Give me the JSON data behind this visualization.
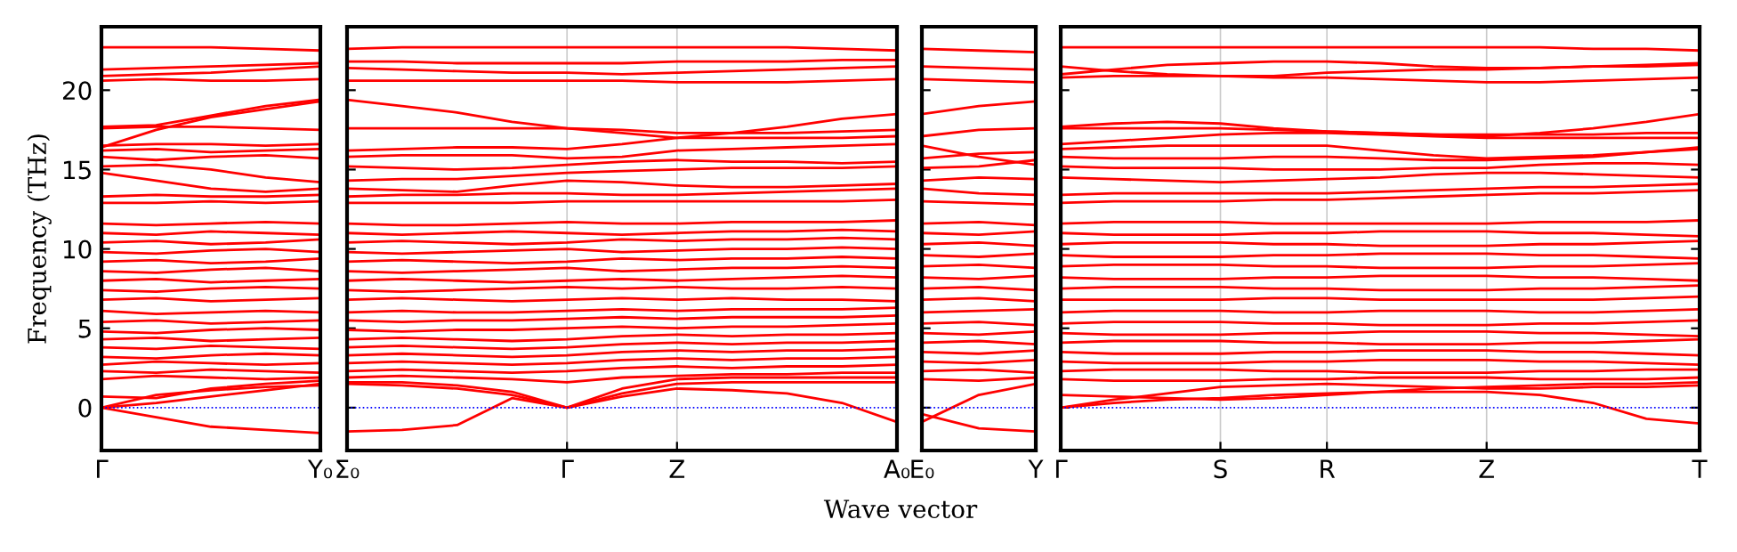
{
  "chart_data": [
    {
      "type": "line",
      "ylabel": "Frequency (THz)",
      "categories": [
        "Γ",
        null,
        null,
        null,
        "Y₀"
      ],
      "ylim": [
        -2.7,
        24
      ],
      "yticks": [
        0,
        5,
        10,
        15,
        20
      ],
      "line_style": "solid",
      "ref_lines": [
        {
          "axis": "y",
          "value": 0,
          "color": "#0000ff",
          "line_style": "dotted"
        }
      ],
      "series": [
        {
          "color": "#ff0000",
          "values": [
            0,
            -0.6,
            -1.2,
            -1.4,
            -1.6
          ]
        },
        {
          "color": "#ff0000",
          "values": [
            0,
            0.8,
            1.1,
            1.3,
            1.4
          ]
        },
        {
          "color": "#ff0000",
          "values": [
            0,
            0.3,
            0.7,
            1.1,
            1.5
          ]
        },
        {
          "color": "#ff0000",
          "values": [
            0.7,
            0.6,
            1.2,
            1.5,
            1.7
          ]
        },
        {
          "color": "#ff0000",
          "values": [
            1.8,
            2.0,
            1.9,
            1.8,
            1.9
          ]
        },
        {
          "color": "#ff0000",
          "values": [
            2.3,
            2.2,
            2.4,
            2.3,
            2.2
          ]
        },
        {
          "color": "#ff0000",
          "values": [
            2.7,
            2.9,
            2.8,
            2.7,
            2.8
          ]
        },
        {
          "color": "#ff0000",
          "values": [
            3.2,
            3.1,
            3.3,
            3.4,
            3.3
          ]
        },
        {
          "color": "#ff0000",
          "values": [
            3.8,
            3.7,
            3.9,
            3.8,
            3.7
          ]
        },
        {
          "color": "#ff0000",
          "values": [
            4.3,
            4.4,
            4.2,
            4.3,
            4.4
          ]
        },
        {
          "color": "#ff0000",
          "values": [
            4.8,
            4.7,
            4.9,
            5.0,
            4.9
          ]
        },
        {
          "color": "#ff0000",
          "values": [
            5.4,
            5.5,
            5.3,
            5.4,
            5.5
          ]
        },
        {
          "color": "#ff0000",
          "values": [
            6.1,
            5.9,
            6.0,
            6.1,
            6.0
          ]
        },
        {
          "color": "#ff0000",
          "values": [
            6.8,
            6.9,
            6.7,
            6.8,
            6.9
          ]
        },
        {
          "color": "#ff0000",
          "values": [
            7.4,
            7.3,
            7.5,
            7.6,
            7.5
          ]
        },
        {
          "color": "#ff0000",
          "values": [
            8.0,
            8.1,
            7.9,
            8.0,
            8.1
          ]
        },
        {
          "color": "#ff0000",
          "values": [
            8.6,
            8.5,
            8.7,
            8.8,
            8.6
          ]
        },
        {
          "color": "#ff0000",
          "values": [
            9.2,
            9.3,
            9.1,
            9.2,
            9.4
          ]
        },
        {
          "color": "#ff0000",
          "values": [
            9.8,
            9.7,
            9.9,
            10.0,
            9.8
          ]
        },
        {
          "color": "#ff0000",
          "values": [
            10.4,
            10.5,
            10.3,
            10.4,
            10.6
          ]
        },
        {
          "color": "#ff0000",
          "values": [
            11.0,
            10.9,
            11.1,
            11.0,
            10.9
          ]
        },
        {
          "color": "#ff0000",
          "values": [
            11.6,
            11.5,
            11.6,
            11.7,
            11.6
          ]
        },
        {
          "color": "#ff0000",
          "values": [
            12.9,
            12.9,
            13.0,
            12.9,
            13.0
          ]
        },
        {
          "color": "#ff0000",
          "values": [
            13.3,
            13.4,
            13.3,
            13.3,
            13.4
          ]
        },
        {
          "color": "#ff0000",
          "values": [
            14.8,
            14.3,
            13.8,
            13.6,
            13.8
          ]
        },
        {
          "color": "#ff0000",
          "values": [
            15.2,
            15.3,
            15.0,
            14.5,
            14.2
          ]
        },
        {
          "color": "#ff0000",
          "values": [
            15.8,
            15.6,
            15.8,
            15.9,
            15.7
          ]
        },
        {
          "color": "#ff0000",
          "values": [
            16.2,
            16.3,
            16.1,
            16.2,
            16.3
          ]
        },
        {
          "color": "#ff0000",
          "values": [
            16.5,
            16.6,
            16.6,
            16.5,
            16.6
          ]
        },
        {
          "color": "#ff0000",
          "values": [
            17.6,
            17.7,
            17.7,
            17.6,
            17.5
          ]
        },
        {
          "color": "#ff0000",
          "values": [
            16.4,
            17.5,
            18.3,
            18.8,
            19.3
          ]
        },
        {
          "color": "#ff0000",
          "values": [
            17.7,
            17.8,
            18.4,
            19.0,
            19.4
          ]
        },
        {
          "color": "#ff0000",
          "values": [
            20.6,
            20.7,
            20.6,
            20.6,
            20.7
          ]
        },
        {
          "color": "#ff0000",
          "values": [
            20.9,
            21.0,
            21.1,
            21.3,
            21.5
          ]
        },
        {
          "color": "#ff0000",
          "values": [
            21.3,
            21.4,
            21.5,
            21.6,
            21.7
          ]
        },
        {
          "color": "#ff0000",
          "values": [
            22.7,
            22.7,
            22.7,
            22.6,
            22.5
          ]
        }
      ]
    },
    {
      "type": "line",
      "xlabel": "Wave vector",
      "categories": [
        "Σ₀",
        null,
        null,
        null,
        "Γ",
        null,
        "Z",
        null,
        null,
        null,
        "A₀"
      ],
      "ylim": [
        -2.7,
        24
      ],
      "yticks": [
        0,
        5,
        10,
        15,
        20
      ],
      "tick_labels": "x",
      "grid": "x",
      "line_style": "solid",
      "ref_lines": [
        {
          "axis": "y",
          "value": 0,
          "color": "#0000ff",
          "line_style": "dotted"
        }
      ],
      "series": [
        {
          "color": "#ff0000",
          "values": [
            -1.5,
            -1.4,
            -1.1,
            0.6,
            0,
            0.7,
            1.2,
            1.1,
            0.9,
            0.3,
            -0.9
          ]
        },
        {
          "color": "#ff0000",
          "values": [
            1.5,
            1.4,
            1.2,
            0.8,
            0,
            0.9,
            1.5,
            1.6,
            1.6,
            1.6,
            1.6
          ]
        },
        {
          "color": "#ff0000",
          "values": [
            1.6,
            1.6,
            1.4,
            1.0,
            0,
            1.2,
            1.8,
            1.9,
            1.9,
            1.9,
            1.9
          ]
        },
        {
          "color": "#ff0000",
          "values": [
            1.9,
            2.0,
            1.9,
            1.8,
            1.6,
            1.9,
            2.0,
            2.1,
            2.1,
            2.2,
            2.2
          ]
        },
        {
          "color": "#ff0000",
          "values": [
            2.3,
            2.4,
            2.3,
            2.2,
            2.3,
            2.5,
            2.6,
            2.5,
            2.6,
            2.6,
            2.7
          ]
        },
        {
          "color": "#ff0000",
          "values": [
            2.8,
            2.9,
            2.8,
            2.7,
            2.8,
            3.0,
            3.1,
            3.0,
            3.1,
            3.1,
            3.2
          ]
        },
        {
          "color": "#ff0000",
          "values": [
            3.3,
            3.4,
            3.3,
            3.2,
            3.3,
            3.5,
            3.6,
            3.5,
            3.6,
            3.6,
            3.7
          ]
        },
        {
          "color": "#ff0000",
          "values": [
            3.8,
            3.9,
            3.8,
            3.7,
            3.8,
            4.0,
            4.1,
            4.0,
            4.1,
            4.1,
            4.2
          ]
        },
        {
          "color": "#ff0000",
          "values": [
            4.3,
            4.4,
            4.3,
            4.2,
            4.3,
            4.5,
            4.6,
            4.5,
            4.6,
            4.6,
            4.7
          ]
        },
        {
          "color": "#ff0000",
          "values": [
            4.9,
            4.8,
            4.9,
            4.9,
            5.0,
            5.1,
            5.0,
            5.1,
            5.1,
            5.2,
            5.3
          ]
        },
        {
          "color": "#ff0000",
          "values": [
            5.5,
            5.4,
            5.5,
            5.5,
            5.6,
            5.7,
            5.6,
            5.7,
            5.7,
            5.7,
            5.8
          ]
        },
        {
          "color": "#ff0000",
          "values": [
            6.0,
            6.1,
            6.0,
            6.0,
            6.1,
            6.2,
            6.1,
            6.2,
            6.2,
            6.2,
            6.3
          ]
        },
        {
          "color": "#ff0000",
          "values": [
            6.8,
            6.9,
            6.8,
            6.7,
            6.8,
            6.9,
            6.8,
            6.9,
            6.8,
            6.8,
            6.7
          ]
        },
        {
          "color": "#ff0000",
          "values": [
            7.4,
            7.3,
            7.4,
            7.5,
            7.6,
            7.5,
            7.6,
            7.5,
            7.5,
            7.6,
            7.5
          ]
        },
        {
          "color": "#ff0000",
          "values": [
            8.0,
            8.1,
            8.0,
            7.9,
            8.0,
            8.1,
            8.0,
            8.1,
            8.2,
            8.3,
            8.2
          ]
        },
        {
          "color": "#ff0000",
          "values": [
            8.6,
            8.5,
            8.6,
            8.7,
            8.8,
            8.6,
            8.7,
            8.8,
            8.8,
            8.9,
            8.8
          ]
        },
        {
          "color": "#ff0000",
          "values": [
            9.2,
            9.3,
            9.2,
            9.1,
            9.2,
            9.4,
            9.3,
            9.4,
            9.4,
            9.5,
            9.4
          ]
        },
        {
          "color": "#ff0000",
          "values": [
            9.8,
            9.7,
            9.8,
            9.9,
            10.0,
            9.8,
            9.9,
            10.0,
            10.0,
            10.1,
            10.0
          ]
        },
        {
          "color": "#ff0000",
          "values": [
            10.4,
            10.5,
            10.4,
            10.3,
            10.4,
            10.6,
            10.5,
            10.6,
            10.6,
            10.7,
            10.6
          ]
        },
        {
          "color": "#ff0000",
          "values": [
            11.0,
            10.9,
            11.0,
            11.1,
            11.0,
            10.9,
            11.0,
            11.1,
            11.1,
            11.2,
            11.1
          ]
        },
        {
          "color": "#ff0000",
          "values": [
            11.6,
            11.5,
            11.5,
            11.6,
            11.7,
            11.6,
            11.6,
            11.7,
            11.7,
            11.7,
            11.8
          ]
        },
        {
          "color": "#ff0000",
          "values": [
            12.9,
            12.9,
            12.9,
            12.9,
            13.0,
            13.0,
            13.0,
            13.0,
            13.0,
            13.0,
            13.1
          ]
        },
        {
          "color": "#ff0000",
          "values": [
            13.3,
            13.4,
            13.4,
            13.5,
            13.5,
            13.4,
            13.4,
            13.5,
            13.6,
            13.7,
            13.8
          ]
        },
        {
          "color": "#ff0000",
          "values": [
            13.8,
            13.7,
            13.6,
            14.0,
            14.3,
            14.2,
            14.0,
            13.9,
            13.9,
            14.0,
            14.1
          ]
        },
        {
          "color": "#ff0000",
          "values": [
            14.3,
            14.4,
            14.4,
            14.6,
            14.8,
            14.9,
            15.0,
            15.1,
            15.1,
            15.1,
            15.2
          ]
        },
        {
          "color": "#ff0000",
          "values": [
            15.2,
            15.1,
            15.0,
            15.1,
            15.3,
            15.5,
            15.6,
            15.5,
            15.5,
            15.4,
            15.5
          ]
        },
        {
          "color": "#ff0000",
          "values": [
            15.8,
            15.9,
            15.9,
            15.9,
            15.7,
            15.8,
            16.2,
            16.3,
            16.4,
            16.5,
            16.6
          ]
        },
        {
          "color": "#ff0000",
          "values": [
            16.2,
            16.3,
            16.4,
            16.4,
            16.3,
            16.6,
            17.0,
            17.0,
            17.0,
            17.0,
            17.1
          ]
        },
        {
          "color": "#ff0000",
          "values": [
            17.6,
            17.6,
            17.6,
            17.6,
            17.6,
            17.5,
            17.3,
            17.3,
            17.3,
            17.4,
            17.5
          ]
        },
        {
          "color": "#ff0000",
          "values": [
            19.4,
            19.0,
            18.6,
            18.0,
            17.6,
            17.3,
            17.0,
            17.3,
            17.7,
            18.2,
            18.5
          ]
        },
        {
          "color": "#ff0000",
          "values": [
            20.6,
            20.6,
            20.6,
            20.6,
            20.6,
            20.6,
            20.5,
            20.5,
            20.5,
            20.6,
            20.7
          ]
        },
        {
          "color": "#ff0000",
          "values": [
            21.4,
            21.3,
            21.2,
            21.1,
            21.1,
            21.0,
            21.1,
            21.2,
            21.3,
            21.4,
            21.5
          ]
        },
        {
          "color": "#ff0000",
          "values": [
            21.8,
            21.8,
            21.7,
            21.7,
            21.7,
            21.7,
            21.8,
            21.8,
            21.8,
            21.9,
            21.9
          ]
        },
        {
          "color": "#ff0000",
          "values": [
            22.6,
            22.7,
            22.7,
            22.7,
            22.7,
            22.7,
            22.7,
            22.7,
            22.7,
            22.6,
            22.5
          ]
        }
      ]
    },
    {
      "type": "line",
      "categories": [
        "E₀",
        null,
        "Y"
      ],
      "ylim": [
        -2.7,
        24
      ],
      "yticks": [
        0,
        5,
        10,
        15,
        20
      ],
      "tick_labels": "x",
      "line_style": "solid",
      "ref_lines": [
        {
          "axis": "y",
          "value": 0,
          "color": "#0000ff",
          "line_style": "dotted"
        }
      ],
      "series": [
        {
          "color": "#ff0000",
          "values": [
            -0.9,
            0.8,
            1.5
          ]
        },
        {
          "color": "#ff0000",
          "values": [
            -0.4,
            -1.3,
            -1.5
          ]
        },
        {
          "color": "#ff0000",
          "values": [
            1.8,
            1.7,
            1.9
          ]
        },
        {
          "color": "#ff0000",
          "values": [
            2.3,
            2.4,
            2.2
          ]
        },
        {
          "color": "#ff0000",
          "values": [
            2.9,
            2.8,
            3.0
          ]
        },
        {
          "color": "#ff0000",
          "values": [
            3.5,
            3.4,
            3.6
          ]
        },
        {
          "color": "#ff0000",
          "values": [
            4.1,
            4.2,
            4.0
          ]
        },
        {
          "color": "#ff0000",
          "values": [
            4.7,
            4.6,
            4.8
          ]
        },
        {
          "color": "#ff0000",
          "values": [
            5.3,
            5.4,
            5.2
          ]
        },
        {
          "color": "#ff0000",
          "values": [
            6.0,
            6.1,
            6.2
          ]
        },
        {
          "color": "#ff0000",
          "values": [
            6.8,
            6.9,
            6.7
          ]
        },
        {
          "color": "#ff0000",
          "values": [
            7.5,
            7.6,
            7.4
          ]
        },
        {
          "color": "#ff0000",
          "values": [
            8.2,
            8.1,
            8.3
          ]
        },
        {
          "color": "#ff0000",
          "values": [
            8.9,
            9.0,
            8.8
          ]
        },
        {
          "color": "#ff0000",
          "values": [
            9.6,
            9.5,
            9.7
          ]
        },
        {
          "color": "#ff0000",
          "values": [
            10.3,
            10.4,
            10.2
          ]
        },
        {
          "color": "#ff0000",
          "values": [
            11.0,
            10.9,
            11.1
          ]
        },
        {
          "color": "#ff0000",
          "values": [
            11.6,
            11.7,
            11.5
          ]
        },
        {
          "color": "#ff0000",
          "values": [
            13.0,
            12.9,
            12.8
          ]
        },
        {
          "color": "#ff0000",
          "values": [
            13.8,
            13.5,
            13.4
          ]
        },
        {
          "color": "#ff0000",
          "values": [
            14.3,
            14.5,
            14.4
          ]
        },
        {
          "color": "#ff0000",
          "values": [
            15.1,
            15.2,
            15.6
          ]
        },
        {
          "color": "#ff0000",
          "values": [
            15.7,
            16.0,
            16.1
          ]
        },
        {
          "color": "#ff0000",
          "values": [
            16.5,
            15.8,
            15.3
          ]
        },
        {
          "color": "#ff0000",
          "values": [
            17.1,
            17.5,
            17.6
          ]
        },
        {
          "color": "#ff0000",
          "values": [
            18.5,
            19.0,
            19.3
          ]
        },
        {
          "color": "#ff0000",
          "values": [
            20.7,
            20.6,
            20.5
          ]
        },
        {
          "color": "#ff0000",
          "values": [
            21.5,
            21.4,
            21.3
          ]
        },
        {
          "color": "#ff0000",
          "values": [
            22.6,
            22.5,
            22.4
          ]
        }
      ]
    },
    {
      "type": "line",
      "categories": [
        "Γ",
        null,
        null,
        "S",
        null,
        "R",
        null,
        null,
        "Z",
        null,
        null,
        null,
        "T"
      ],
      "ylim": [
        -2.7,
        24
      ],
      "yticks": [
        0,
        5,
        10,
        15,
        20
      ],
      "tick_labels": "x",
      "grid": "x",
      "line_style": "solid",
      "ref_lines": [
        {
          "axis": "y",
          "value": 0,
          "color": "#0000ff",
          "line_style": "dotted"
        }
      ],
      "series": [
        {
          "color": "#ff0000",
          "values": [
            0,
            0.3,
            0.5,
            0.6,
            0.8,
            0.9,
            1.0,
            1.0,
            1.0,
            0.8,
            0.3,
            -0.7,
            -1.0
          ]
        },
        {
          "color": "#ff0000",
          "values": [
            0,
            0.5,
            0.9,
            1.3,
            1.4,
            1.5,
            1.4,
            1.3,
            1.2,
            1.2,
            1.3,
            1.3,
            1.4
          ]
        },
        {
          "color": "#ff0000",
          "values": [
            0.8,
            0.7,
            0.6,
            0.5,
            0.6,
            0.8,
            1.0,
            1.2,
            1.3,
            1.4,
            1.5,
            1.5,
            1.6
          ]
        },
        {
          "color": "#ff0000",
          "values": [
            1.8,
            1.7,
            1.7,
            1.7,
            1.8,
            1.8,
            1.9,
            1.9,
            1.9,
            1.8,
            1.8,
            1.8,
            1.9
          ]
        },
        {
          "color": "#ff0000",
          "values": [
            2.3,
            2.4,
            2.4,
            2.4,
            2.3,
            2.3,
            2.2,
            2.2,
            2.2,
            2.3,
            2.3,
            2.4,
            2.4
          ]
        },
        {
          "color": "#ff0000",
          "values": [
            2.9,
            2.8,
            2.8,
            2.8,
            2.9,
            2.9,
            3.0,
            3.0,
            3.0,
            2.9,
            2.9,
            2.8,
            2.7
          ]
        },
        {
          "color": "#ff0000",
          "values": [
            3.5,
            3.4,
            3.4,
            3.4,
            3.5,
            3.5,
            3.6,
            3.6,
            3.6,
            3.5,
            3.5,
            3.4,
            3.3
          ]
        },
        {
          "color": "#ff0000",
          "values": [
            4.1,
            4.2,
            4.2,
            4.2,
            4.1,
            4.1,
            4.0,
            4.0,
            4.0,
            4.1,
            4.1,
            4.2,
            4.3
          ]
        },
        {
          "color": "#ff0000",
          "values": [
            4.7,
            4.6,
            4.6,
            4.6,
            4.7,
            4.7,
            4.8,
            4.8,
            4.8,
            4.7,
            4.7,
            4.6,
            4.5
          ]
        },
        {
          "color": "#ff0000",
          "values": [
            5.3,
            5.4,
            5.4,
            5.4,
            5.3,
            5.3,
            5.2,
            5.2,
            5.2,
            5.3,
            5.3,
            5.4,
            5.5
          ]
        },
        {
          "color": "#ff0000",
          "values": [
            6.0,
            6.1,
            6.1,
            6.1,
            6.0,
            6.0,
            6.1,
            6.1,
            6.1,
            6.0,
            6.0,
            6.1,
            6.2
          ]
        },
        {
          "color": "#ff0000",
          "values": [
            6.8,
            6.8,
            6.8,
            6.8,
            6.9,
            6.9,
            6.8,
            6.8,
            6.8,
            6.8,
            6.8,
            6.9,
            7.0
          ]
        },
        {
          "color": "#ff0000",
          "values": [
            7.5,
            7.6,
            7.6,
            7.6,
            7.5,
            7.5,
            7.4,
            7.4,
            7.4,
            7.5,
            7.5,
            7.6,
            7.7
          ]
        },
        {
          "color": "#ff0000",
          "values": [
            8.2,
            8.1,
            8.1,
            8.1,
            8.2,
            8.2,
            8.3,
            8.3,
            8.3,
            8.2,
            8.2,
            8.1,
            8.0
          ]
        },
        {
          "color": "#ff0000",
          "values": [
            8.9,
            9.0,
            9.0,
            9.0,
            8.9,
            8.9,
            8.8,
            8.8,
            8.8,
            8.9,
            8.9,
            9.0,
            9.1
          ]
        },
        {
          "color": "#ff0000",
          "values": [
            9.6,
            9.5,
            9.5,
            9.5,
            9.6,
            9.6,
            9.7,
            9.7,
            9.7,
            9.6,
            9.6,
            9.5,
            9.4
          ]
        },
        {
          "color": "#ff0000",
          "values": [
            10.3,
            10.4,
            10.4,
            10.4,
            10.3,
            10.3,
            10.2,
            10.2,
            10.2,
            10.3,
            10.3,
            10.4,
            10.5
          ]
        },
        {
          "color": "#ff0000",
          "values": [
            11.0,
            10.9,
            10.9,
            10.9,
            11.0,
            11.0,
            11.1,
            11.1,
            11.1,
            11.0,
            11.0,
            10.9,
            10.8
          ]
        },
        {
          "color": "#ff0000",
          "values": [
            11.6,
            11.7,
            11.7,
            11.7,
            11.6,
            11.6,
            11.6,
            11.6,
            11.6,
            11.7,
            11.7,
            11.7,
            11.8
          ]
        },
        {
          "color": "#ff0000",
          "values": [
            12.9,
            13.0,
            13.0,
            13.0,
            13.1,
            13.1,
            13.2,
            13.3,
            13.4,
            13.5,
            13.5,
            13.6,
            13.7
          ]
        },
        {
          "color": "#ff0000",
          "values": [
            13.4,
            13.5,
            13.5,
            13.5,
            13.5,
            13.5,
            13.6,
            13.7,
            13.8,
            13.9,
            13.9,
            14.0,
            14.1
          ]
        },
        {
          "color": "#ff0000",
          "values": [
            14.5,
            14.4,
            14.3,
            14.2,
            14.3,
            14.4,
            14.5,
            14.7,
            14.8,
            14.8,
            14.7,
            14.6,
            14.5
          ]
        },
        {
          "color": "#ff0000",
          "values": [
            15.2,
            15.1,
            15.1,
            15.1,
            15.0,
            15.0,
            15.0,
            15.1,
            15.1,
            15.3,
            15.4,
            15.4,
            15.3
          ]
        },
        {
          "color": "#ff0000",
          "values": [
            15.8,
            15.7,
            15.7,
            15.7,
            15.8,
            15.8,
            15.7,
            15.6,
            15.6,
            15.7,
            15.8,
            16.1,
            16.4
          ]
        },
        {
          "color": "#ff0000",
          "values": [
            16.3,
            16.4,
            16.5,
            16.5,
            16.5,
            16.5,
            16.2,
            15.9,
            15.7,
            15.8,
            15.9,
            16.1,
            16.3
          ]
        },
        {
          "color": "#ff0000",
          "values": [
            16.6,
            16.8,
            17.0,
            17.2,
            17.3,
            17.3,
            17.2,
            17.1,
            17.0,
            17.0,
            17.0,
            17.0,
            17.0
          ]
        },
        {
          "color": "#ff0000",
          "values": [
            17.6,
            17.6,
            17.6,
            17.6,
            17.5,
            17.4,
            17.3,
            17.2,
            17.1,
            17.3,
            17.6,
            18.0,
            18.5
          ]
        },
        {
          "color": "#ff0000",
          "values": [
            17.7,
            17.9,
            18.0,
            17.9,
            17.6,
            17.4,
            17.3,
            17.2,
            17.2,
            17.2,
            17.2,
            17.3,
            17.3
          ]
        },
        {
          "color": "#ff0000",
          "values": [
            20.8,
            20.9,
            20.9,
            20.9,
            20.8,
            20.8,
            20.7,
            20.6,
            20.5,
            20.5,
            20.6,
            20.7,
            20.8
          ]
        },
        {
          "color": "#ff0000",
          "values": [
            21.0,
            21.3,
            21.6,
            21.7,
            21.8,
            21.8,
            21.7,
            21.5,
            21.4,
            21.4,
            21.5,
            21.5,
            21.6
          ]
        },
        {
          "color": "#ff0000",
          "values": [
            21.5,
            21.2,
            21.0,
            20.9,
            20.9,
            21.1,
            21.2,
            21.3,
            21.3,
            21.4,
            21.5,
            21.6,
            21.7
          ]
        },
        {
          "color": "#ff0000",
          "values": [
            22.7,
            22.7,
            22.7,
            22.7,
            22.7,
            22.7,
            22.7,
            22.7,
            22.7,
            22.7,
            22.6,
            22.6,
            22.5
          ]
        }
      ]
    }
  ]
}
